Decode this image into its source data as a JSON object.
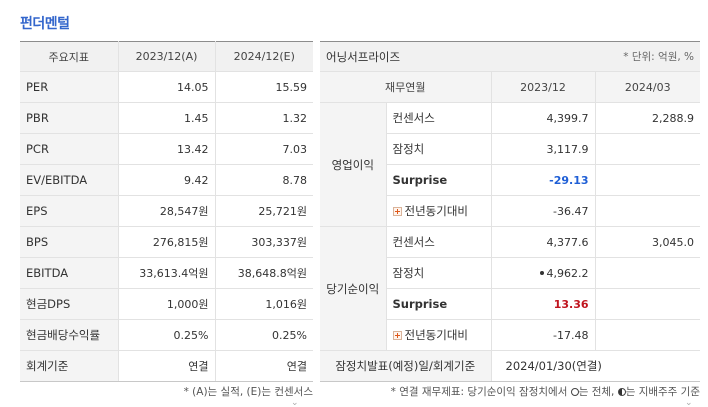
{
  "section_title": "펀더멘털",
  "left": {
    "headers": [
      "주요지표",
      "2023/12(A)",
      "2024/12(E)"
    ],
    "rows": [
      {
        "label": "PER",
        "a": "14.05",
        "e": "15.59"
      },
      {
        "label": "PBR",
        "a": "1.45",
        "e": "1.32"
      },
      {
        "label": "PCR",
        "a": "13.42",
        "e": "7.03"
      },
      {
        "label": "EV/EBITDA",
        "a": "9.42",
        "e": "8.78"
      },
      {
        "label": "EPS",
        "a": "28,547원",
        "e": "25,721원"
      },
      {
        "label": "BPS",
        "a": "276,815원",
        "e": "303,337원"
      },
      {
        "label": "EBITDA",
        "a": "33,613.4억원",
        "e": "38,648.8억원"
      },
      {
        "label": "현금DPS",
        "a": "1,000원",
        "e": "1,016원"
      },
      {
        "label": "현금배당수익률",
        "a": "0.25%",
        "e": "0.25%"
      },
      {
        "label": "회계기준",
        "a": "연결",
        "e": "연결"
      }
    ],
    "note": "* (A)는 실적, (E)는 컨센서스"
  },
  "right": {
    "company": "어닝서프라이즈",
    "unit": "* 단위: 억원, %",
    "headers": [
      "재무연월",
      "2023/12",
      "2024/03"
    ],
    "groups": [
      {
        "name": "영업이익",
        "rows": [
          {
            "item": "컨센서스",
            "v1": "4,399.7",
            "v2": "2,288.9"
          },
          {
            "item": "잠정치",
            "v1": "3,117.9",
            "v2": ""
          },
          {
            "item": "Surprise",
            "v1": "-29.13",
            "v2": ""
          },
          {
            "item": "전년동기대비",
            "v1": "-36.47",
            "v2": ""
          }
        ]
      },
      {
        "name": "당기순이익",
        "rows": [
          {
            "item": "컨센서스",
            "v1": "4,377.6",
            "v2": "3,045.0"
          },
          {
            "item": "잠정치",
            "v1": "4,962.2",
            "v2": ""
          },
          {
            "item": "Surprise",
            "v1": "13.36",
            "v2": ""
          },
          {
            "item": "전년동기대비",
            "v1": "-17.48",
            "v2": ""
          }
        ]
      }
    ],
    "footer_label": "잠정치발표(예정)일/회계기준",
    "footer_value": "2024/01/30(연결)",
    "note_prefix": "* 연결 재무제표: 당기순이익 잠정치에서",
    "note_mid": "는 전체,",
    "note_suffix": "는 지배주주 기준",
    "colors": {
      "surprise_negative": "#1f5fd6",
      "surprise_positive": "#c0141e",
      "title": "#3366cc"
    }
  }
}
